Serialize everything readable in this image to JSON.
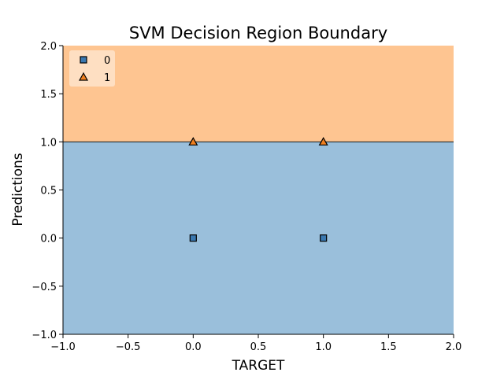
{
  "chart_data": {
    "type": "scatter",
    "title": "SVM Decision Region Boundary",
    "xlabel": "TARGET",
    "ylabel": "Predictions",
    "xlim": [
      -1.0,
      2.0
    ],
    "ylim": [
      -1.0,
      2.0
    ],
    "xticks": [
      -1.0,
      -0.5,
      0.0,
      0.5,
      1.0,
      1.5,
      2.0
    ],
    "yticks": [
      -1.0,
      -0.5,
      0.0,
      0.5,
      1.0,
      1.5,
      2.0
    ],
    "xtick_labels": [
      "−1.0",
      "−0.5",
      "0.0",
      "0.5",
      "1.0",
      "1.5",
      "2.0"
    ],
    "ytick_labels": [
      "−1.0",
      "−0.5",
      "0.0",
      "0.5",
      "1.0",
      "1.5",
      "2.0"
    ],
    "grid": false,
    "legend_position": "top-left",
    "decision_boundary": {
      "y": 1.0
    },
    "regions": [
      {
        "class": "0",
        "y_from": -1.0,
        "y_to": 1.0,
        "color": "#9abfdb"
      },
      {
        "class": "1",
        "y_from": 1.0,
        "y_to": 2.0,
        "color": "#fec591"
      }
    ],
    "series": [
      {
        "name": "0",
        "marker": "square",
        "color": "#3a78b0",
        "points": [
          [
            0,
            0
          ],
          [
            1,
            0
          ]
        ]
      },
      {
        "name": "1",
        "marker": "triangle",
        "color": "#f07f1e",
        "points": [
          [
            0,
            1
          ],
          [
            1,
            1
          ]
        ]
      }
    ]
  }
}
